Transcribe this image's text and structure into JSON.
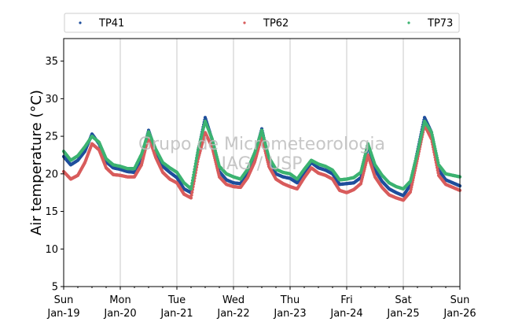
{
  "chart_data": {
    "type": "scatter",
    "ylabel": "Air temperature (°C)",
    "ylim": [
      5,
      38
    ],
    "yticks": [
      5,
      10,
      15,
      20,
      25,
      30,
      35
    ],
    "xlim": [
      "2015-01-19",
      "2015-01-26"
    ],
    "xticks": [
      {
        "day": "Sun",
        "date": "Jan-19"
      },
      {
        "day": "Mon",
        "date": "Jan-20"
      },
      {
        "day": "Tue",
        "date": "Jan-21"
      },
      {
        "day": "Wed",
        "date": "Jan-22"
      },
      {
        "day": "Thu",
        "date": "Jan-23"
      },
      {
        "day": "Fri",
        "date": "Jan-24"
      },
      {
        "day": "Sat",
        "date": "Jan-25"
      },
      {
        "day": "Sun",
        "date": "Jan-26"
      }
    ],
    "grid": "vertical lines at day boundaries",
    "legend_position": "top (outside plot, 3 columns)",
    "watermark": [
      "Grupo de Micrometeorologia",
      "IAG / USP"
    ],
    "series": [
      {
        "name": "TP41",
        "color": "#1f4e9c",
        "day_offset": [
          0.0,
          0.125,
          0.25,
          0.375,
          0.5,
          0.625,
          0.75,
          0.875,
          1.0,
          1.125,
          1.25,
          1.375,
          1.5,
          1.625,
          1.75,
          1.875,
          2.0,
          2.125,
          2.25,
          2.375,
          2.5,
          2.625,
          2.75,
          2.875,
          3.0,
          3.125,
          3.25,
          3.375,
          3.5,
          3.625,
          3.75,
          3.875,
          4.0,
          4.125,
          4.25,
          4.375,
          4.5,
          4.625,
          4.75,
          4.875,
          5.0,
          5.125,
          5.25,
          5.375,
          5.5,
          5.625,
          5.75,
          5.875,
          6.0,
          6.125,
          6.25,
          6.375,
          6.5,
          6.625,
          6.75,
          6.875,
          7.0
        ],
        "values": [
          22.3,
          21.2,
          21.8,
          23.0,
          25.3,
          24.0,
          21.6,
          20.8,
          20.6,
          20.3,
          20.2,
          22.0,
          25.8,
          23.0,
          21.0,
          20.2,
          19.5,
          18.0,
          17.5,
          23.0,
          27.5,
          24.5,
          20.3,
          19.2,
          18.8,
          18.7,
          20.2,
          22.5,
          26.0,
          21.8,
          20.0,
          19.6,
          19.4,
          18.8,
          20.2,
          21.5,
          20.8,
          20.5,
          20.0,
          18.6,
          18.7,
          18.8,
          19.5,
          23.8,
          20.5,
          19.0,
          18.0,
          17.5,
          17.1,
          18.5,
          23.0,
          27.5,
          25.5,
          20.5,
          19.2,
          18.8,
          18.4
        ]
      },
      {
        "name": "TP62",
        "color": "#d85c5c",
        "day_offset": [
          0.0,
          0.125,
          0.25,
          0.375,
          0.5,
          0.625,
          0.75,
          0.875,
          1.0,
          1.125,
          1.25,
          1.375,
          1.5,
          1.625,
          1.75,
          1.875,
          2.0,
          2.125,
          2.25,
          2.375,
          2.5,
          2.625,
          2.75,
          2.875,
          3.0,
          3.125,
          3.25,
          3.375,
          3.5,
          3.625,
          3.75,
          3.875,
          4.0,
          4.125,
          4.25,
          4.375,
          4.5,
          4.625,
          4.75,
          4.875,
          5.0,
          5.125,
          5.25,
          5.375,
          5.5,
          5.625,
          5.75,
          5.875,
          6.0,
          6.125,
          6.25,
          6.375,
          6.5,
          6.625,
          6.75,
          6.875,
          7.0
        ],
        "values": [
          20.3,
          19.3,
          19.8,
          21.5,
          24.0,
          23.2,
          20.8,
          19.9,
          19.8,
          19.6,
          19.6,
          21.2,
          25.0,
          22.2,
          20.2,
          19.3,
          18.8,
          17.3,
          16.8,
          22.0,
          25.5,
          23.5,
          19.6,
          18.6,
          18.3,
          18.2,
          19.5,
          21.6,
          25.0,
          21.0,
          19.3,
          18.7,
          18.3,
          18.0,
          19.5,
          20.8,
          20.1,
          19.8,
          19.3,
          17.8,
          17.5,
          17.9,
          18.7,
          22.5,
          19.6,
          18.2,
          17.2,
          16.8,
          16.5,
          17.6,
          22.0,
          26.5,
          24.6,
          19.8,
          18.6,
          18.2,
          17.8
        ]
      },
      {
        "name": "TP73",
        "color": "#3cb371",
        "day_offset": [
          0.0,
          0.125,
          0.25,
          0.375,
          0.5,
          0.625,
          0.75,
          0.875,
          1.0,
          1.125,
          1.25,
          1.375,
          1.5,
          1.625,
          1.75,
          1.875,
          2.0,
          2.125,
          2.25,
          2.375,
          2.5,
          2.625,
          2.75,
          2.875,
          3.0,
          3.125,
          3.25,
          3.375,
          3.5,
          3.625,
          3.75,
          3.875,
          4.0,
          4.125,
          4.25,
          4.375,
          4.5,
          4.625,
          4.75,
          4.875,
          5.0,
          5.125,
          5.25,
          5.375,
          5.5,
          5.625,
          5.75,
          5.875,
          6.0,
          6.125,
          6.25,
          6.375,
          6.5,
          6.625,
          6.75,
          6.875,
          7.0
        ],
        "values": [
          23.0,
          21.8,
          22.4,
          23.6,
          25.0,
          24.2,
          22.0,
          21.2,
          21.0,
          20.7,
          20.7,
          22.6,
          25.6,
          23.3,
          21.5,
          20.8,
          20.2,
          18.8,
          18.0,
          23.2,
          27.0,
          24.6,
          21.0,
          20.0,
          19.6,
          19.3,
          20.6,
          22.8,
          25.8,
          22.2,
          20.6,
          20.2,
          20.0,
          19.3,
          20.6,
          21.8,
          21.3,
          21.0,
          20.5,
          19.2,
          19.3,
          19.5,
          20.2,
          24.0,
          21.2,
          19.8,
          18.8,
          18.3,
          18.0,
          19.0,
          22.8,
          27.0,
          25.5,
          21.2,
          20.0,
          19.8,
          19.6
        ]
      }
    ]
  }
}
